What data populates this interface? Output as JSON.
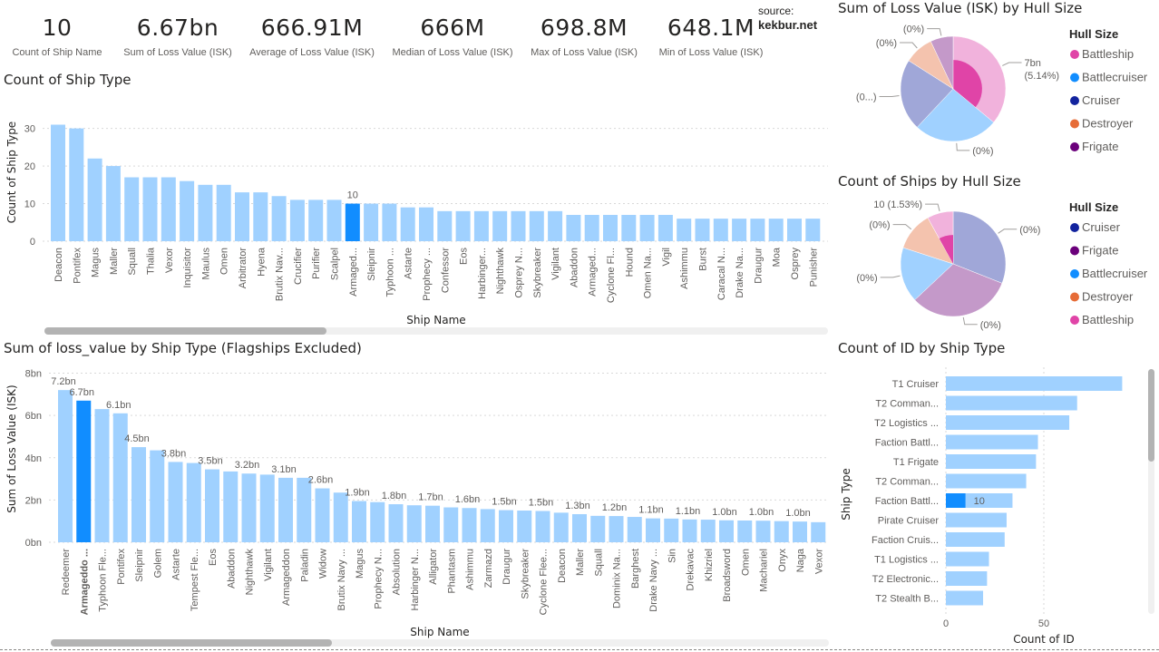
{
  "kpis": [
    {
      "value": "10",
      "label": "Count of Ship Name"
    },
    {
      "value": "6.67bn",
      "label": "Sum of Loss Value (ISK)"
    },
    {
      "value": "666.91M",
      "label": "Average of Loss Value (ISK)"
    },
    {
      "value": "666M",
      "label": "Median of Loss Value (ISK)"
    },
    {
      "value": "698.8M",
      "label": "Max of Loss Value (ISK)"
    },
    {
      "value": "648.1M",
      "label": "Min of Loss Value (ISK)"
    }
  ],
  "source": {
    "label": "source:",
    "site": "kekbur.net"
  },
  "colors": {
    "bar": "#a0d1ff",
    "highlight": "#118dff",
    "grid": "#d9d9d9"
  },
  "chart_data": [
    {
      "id": "count_ship_type",
      "type": "bar",
      "title": "Count of Ship Type",
      "xlabel": "Ship Name",
      "ylabel": "Count of Ship Type",
      "ylim": [
        0,
        31
      ],
      "yticks": [
        "0",
        "10",
        "20",
        "30"
      ],
      "ytick_values": [
        0,
        10,
        20,
        30
      ],
      "grid": true,
      "highlight_index": 16,
      "highlight_label": "10",
      "categories": [
        "Deacon",
        "Pontifex",
        "Magus",
        "Maller",
        "Squall",
        "Thalia",
        "Vexor",
        "Inquisitor",
        "Maulus",
        "Omen",
        "Arbitrator",
        "Hyena",
        "Brutix Nav...",
        "Crucifier",
        "Purifier",
        "Scalpel",
        "Armaged...",
        "Sleipnir",
        "Typhoon ...",
        "Astarte",
        "Prophecy ...",
        "Confessor",
        "Eos",
        "Harbinger...",
        "Nighthawk",
        "Osprey N...",
        "Skybreaker",
        "Vigilant",
        "Abaddon",
        "Armaged...",
        "Cyclone Fl...",
        "Hound",
        "Omen Na...",
        "Vigil",
        "Ashimmu",
        "Burst",
        "Caracal N...",
        "Drake Na...",
        "Draugur",
        "Moa",
        "Osprey",
        "Punisher"
      ],
      "values": [
        31,
        30,
        22,
        20,
        17,
        17,
        17,
        16,
        15,
        15,
        13,
        13,
        12,
        11,
        11,
        11,
        10,
        10,
        10,
        9,
        9,
        8,
        8,
        8,
        8,
        8,
        8,
        8,
        7,
        7,
        7,
        7,
        7,
        7,
        6,
        6,
        6,
        6,
        6,
        6,
        6,
        6
      ]
    },
    {
      "id": "sum_loss_value",
      "type": "bar",
      "title": "Sum of loss_value by Ship Type (Flagships Excluded)",
      "xlabel": "Ship Name",
      "ylabel": "Sum of Loss Value (ISK)",
      "ylim": [
        0,
        8
      ],
      "yticks": [
        "0bn",
        "2bn",
        "4bn",
        "6bn",
        "8bn"
      ],
      "ytick_values": [
        0,
        2,
        4,
        6,
        8
      ],
      "grid": true,
      "highlight_index": 1,
      "categories": [
        "Redeemer",
        "Armageddo ...",
        "Typhoon Fle...",
        "Pontifex",
        "Sleipnir",
        "Golem",
        "Astarte",
        "Tempest Fle...",
        "Eos",
        "Abaddon",
        "Nighthawk",
        "Vigilant",
        "Armageddon",
        "Paladin",
        "Widow",
        "Brutix Navy ...",
        "Magus",
        "Prophecy N...",
        "Absolution",
        "Harbinger N...",
        "Alligator",
        "Phantasm",
        "Ashimmu",
        "Zarmazd",
        "Draugur",
        "Skybreaker",
        "Cyclone Flee...",
        "Deacon",
        "Maller",
        "Squall",
        "Dominix Na...",
        "Barghest",
        "Drake Navy ...",
        "Sin",
        "Drekavac",
        "Khizriel",
        "Broadsword",
        "Omen",
        "Machariel",
        "Onyx",
        "Naga",
        "Vexor"
      ],
      "values": [
        7.2,
        6.7,
        6.3,
        6.1,
        4.5,
        4.35,
        3.8,
        3.75,
        3.45,
        3.35,
        3.25,
        3.2,
        3.05,
        3.05,
        2.55,
        2.35,
        1.95,
        1.9,
        1.8,
        1.75,
        1.73,
        1.65,
        1.62,
        1.57,
        1.52,
        1.5,
        1.48,
        1.4,
        1.33,
        1.25,
        1.24,
        1.2,
        1.13,
        1.12,
        1.08,
        1.07,
        1.04,
        1.03,
        1.02,
        1.0,
        0.98,
        0.95
      ],
      "data_labels": [
        "7.2bn",
        "6.7bn",
        "",
        "6.1bn",
        "4.5bn",
        "",
        "3.8bn",
        "",
        "3.5bn",
        "",
        "3.2bn",
        "",
        "3.1bn",
        "",
        "2.6bn",
        "",
        "1.9bn",
        "",
        "1.8bn",
        "",
        "1.7bn",
        "",
        "1.6bn",
        "",
        "1.5bn",
        "",
        "1.5bn",
        "",
        "1.3bn",
        "",
        "1.2bn",
        "",
        "1.1bn",
        "",
        "1.1bn",
        "",
        "1.0bn",
        "",
        "1.0bn",
        "",
        "1.0bn",
        ""
      ]
    },
    {
      "id": "loss_by_hull",
      "type": "pie",
      "title": "Sum of Loss Value (ISK) by Hull Size",
      "legend_title": "Hull Size",
      "legend_position": "right",
      "legend": [
        {
          "name": "Battleship",
          "color": "#e044a7"
        },
        {
          "name": "Battlecruiser",
          "color": "#118dff"
        },
        {
          "name": "Cruiser",
          "color": "#12239e"
        },
        {
          "name": "Destroyer",
          "color": "#e66c37"
        },
        {
          "name": "Frigate",
          "color": "#6b007b"
        }
      ],
      "slices": [
        {
          "name": "Battleship",
          "share": 0.36,
          "color": "#f1b2dc",
          "highlight_share": 0.0514,
          "highlight_color": "#e044a7",
          "label": [
            "7bn",
            "(5.14%)"
          ]
        },
        {
          "name": "Battlecruiser",
          "share": 0.26,
          "color": "#a0d1ff",
          "label": [
            "(0%)"
          ]
        },
        {
          "name": "Cruiser",
          "share": 0.22,
          "color": "#a0a7d8",
          "label": [
            "(0...)"
          ]
        },
        {
          "name": "Destroyer",
          "share": 0.09,
          "color": "#f4c3ae",
          "label": [
            "(0%)"
          ]
        },
        {
          "name": "Frigate",
          "share": 0.07,
          "color": "#c499c9",
          "label": [
            "(0%)"
          ]
        }
      ]
    },
    {
      "id": "count_by_hull",
      "type": "pie",
      "title": "Count of Ships by Hull Size",
      "legend_title": "Hull Size",
      "legend_position": "right",
      "legend": [
        {
          "name": "Cruiser",
          "color": "#12239e"
        },
        {
          "name": "Frigate",
          "color": "#6b007b"
        },
        {
          "name": "Battlecruiser",
          "color": "#118dff"
        },
        {
          "name": "Destroyer",
          "color": "#e66c37"
        },
        {
          "name": "Battleship",
          "color": "#e044a7"
        }
      ],
      "slices": [
        {
          "name": "Cruiser",
          "share": 0.31,
          "color": "#a0a7d8",
          "label": [
            "(0%)"
          ]
        },
        {
          "name": "Frigate",
          "share": 0.32,
          "color": "#c499c9",
          "label": [
            "(0%)"
          ]
        },
        {
          "name": "Battlecruiser",
          "share": 0.17,
          "color": "#a0d1ff",
          "label": [
            "(0%)"
          ]
        },
        {
          "name": "Destroyer",
          "share": 0.12,
          "color": "#f4c3ae",
          "label": [
            "(0%)"
          ]
        },
        {
          "name": "Battleship",
          "share": 0.08,
          "color": "#f1b2dc",
          "highlight_share": 0.0153,
          "highlight_color": "#e044a7",
          "label": [
            "10 (1.53%)"
          ]
        }
      ]
    },
    {
      "id": "count_id_by_type",
      "type": "bar",
      "orientation": "horizontal",
      "title": "Count of ID by Ship Type",
      "xlabel": "Count of ID",
      "ylabel": "Ship Type",
      "xlim": [
        0,
        100
      ],
      "xticks": [
        "0",
        "50"
      ],
      "xtick_values": [
        0,
        50
      ],
      "grid": true,
      "categories": [
        "T1 Cruiser",
        "T2 Comman...",
        "T2 Logistics ...",
        "Faction Battl...",
        "T1 Frigate",
        "T2 Comman...",
        "Faction Battl...",
        "Pirate Cruiser",
        "Faction Cruis...",
        "T1 Logistics ...",
        "T2 Electronic...",
        "T2 Stealth B..."
      ],
      "values": [
        90,
        67,
        63,
        47,
        46,
        41,
        34,
        31,
        30,
        22,
        21,
        19
      ],
      "highlight_index": 6,
      "highlight_value": 10,
      "highlight_label": "10"
    }
  ]
}
